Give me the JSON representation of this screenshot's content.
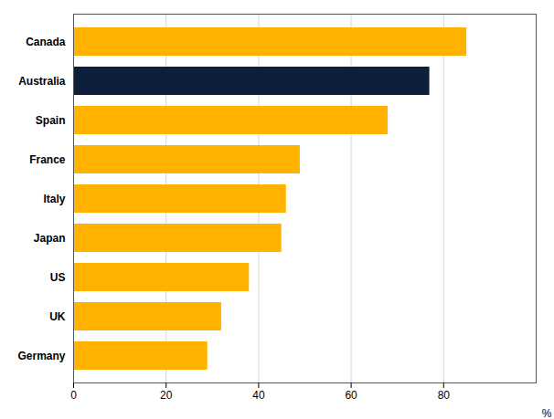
{
  "chart_data": {
    "type": "bar",
    "orientation": "horizontal",
    "categories": [
      "Canada",
      "Australia",
      "Spain",
      "France",
      "Italy",
      "Japan",
      "US",
      "UK",
      "Germany"
    ],
    "values": [
      85,
      77,
      68,
      49,
      46,
      45,
      38,
      32,
      29
    ],
    "colors": [
      "#FFB300",
      "#0d1f3c",
      "#FFB300",
      "#FFB300",
      "#FFB300",
      "#FFB300",
      "#FFB300",
      "#FFB300",
      "#FFB300"
    ],
    "x_label": "%",
    "xlim": [
      0,
      100
    ],
    "xticks": [
      0,
      20,
      40,
      60,
      80
    ],
    "grid": true
  }
}
